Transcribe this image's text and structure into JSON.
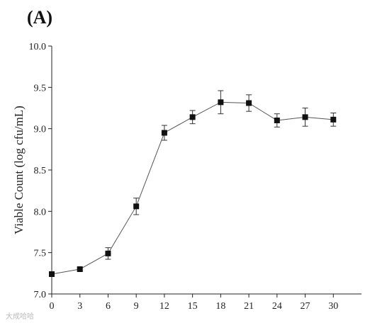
{
  "panel_label": "(A)",
  "watermark": "大成哈哈",
  "chart_data": {
    "type": "line",
    "title": "",
    "xlabel": "",
    "ylabel": "Viable Count (log cfu/mL)",
    "xlim": [
      0,
      33
    ],
    "ylim": [
      7.0,
      10.0
    ],
    "x_ticks": [
      0,
      3,
      6,
      9,
      12,
      15,
      18,
      21,
      24,
      27,
      30
    ],
    "x_tick_labels": [
      "0",
      "3",
      "6",
      "9",
      "12",
      "15",
      "18",
      "21",
      "24",
      "27",
      "30"
    ],
    "y_ticks": [
      7.0,
      7.5,
      8.0,
      8.5,
      9.0,
      9.5,
      10.0
    ],
    "y_tick_labels": [
      "7.0",
      "7.5",
      "8.0",
      "8.5",
      "9.0",
      "9.5",
      "10.0"
    ],
    "grid": false,
    "marker": "square",
    "line_color": "#555555",
    "marker_color": "#111111",
    "series": [
      {
        "x": [
          0,
          3,
          6,
          9,
          12,
          15,
          18,
          21,
          24,
          27,
          30
        ],
        "y": [
          7.24,
          7.3,
          7.49,
          8.06,
          8.95,
          9.14,
          9.32,
          9.31,
          9.1,
          9.14,
          9.11
        ],
        "err": [
          0.03,
          0.02,
          0.07,
          0.1,
          0.09,
          0.08,
          0.14,
          0.1,
          0.08,
          0.11,
          0.08
        ]
      }
    ]
  }
}
